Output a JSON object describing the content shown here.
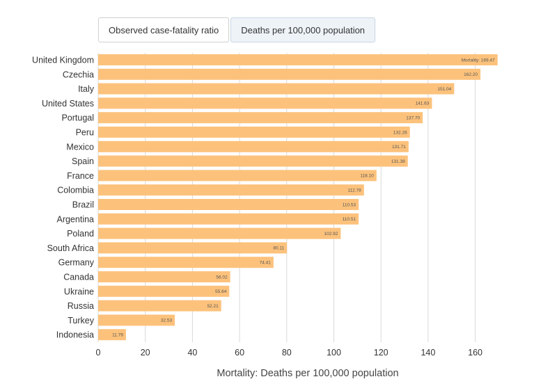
{
  "tabs": [
    {
      "label": "Observed case-fatality ratio",
      "active": false
    },
    {
      "label": "Deaths per 100,000 population",
      "active": true
    }
  ],
  "chart_data": {
    "type": "bar",
    "orientation": "horizontal",
    "categories": [
      "United Kingdom",
      "Czechia",
      "Italy",
      "United States",
      "Portugal",
      "Peru",
      "Mexico",
      "Spain",
      "France",
      "Colombia",
      "Brazil",
      "Argentina",
      "Poland",
      "South Africa",
      "Germany",
      "Canada",
      "Ukraine",
      "Russia",
      "Turkey",
      "Indonesia"
    ],
    "values": [
      169.47,
      162.2,
      151.04,
      141.63,
      137.7,
      132.26,
      131.71,
      131.38,
      118.1,
      112.78,
      110.53,
      110.51,
      102.92,
      80.11,
      74.41,
      56.02,
      55.64,
      52.21,
      32.53,
      11.79
    ],
    "data_labels": [
      "Mortality: 169.47",
      "162.20",
      "151.04",
      "141.63",
      "137.70",
      "132.26",
      "131.71",
      "131.38",
      "118.10",
      "112.78",
      "110.53",
      "110.51",
      "102.92",
      "80.11",
      "74.41",
      "56.02",
      "55.64",
      "52.21",
      "32.53",
      "11.79"
    ],
    "xlabel": "Mortality: Deaths per 100,000 population",
    "ylabel": "",
    "xlim": [
      0,
      170
    ],
    "xticks": [
      0,
      20,
      40,
      60,
      80,
      100,
      120,
      140,
      160
    ],
    "grid": "vertical",
    "colors": {
      "bar": "#fcc27c",
      "grid": "#d9d9d9"
    }
  }
}
